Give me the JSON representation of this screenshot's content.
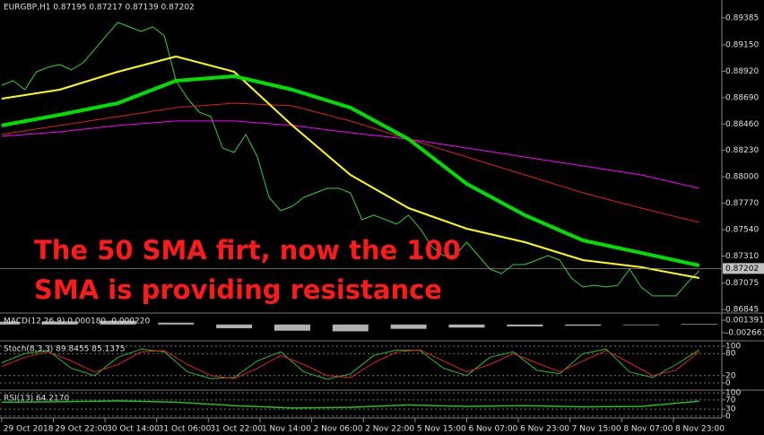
{
  "chart_data": [
    {
      "type": "line",
      "title": "EURGBP,H1 0.87195 0.87217 0.87139 0.87202",
      "annotation": [
        "The 50 SMA firt, now the 100",
        "SMA is providing resistance"
      ],
      "last": 0.87202,
      "grid": false,
      "xlim": [
        -0.5,
        223
      ],
      "xticks": [
        {
          "value": 0,
          "label": "29 Oct 2018"
        },
        {
          "value": 16,
          "label": "29 Oct 22:00"
        },
        {
          "value": 32,
          "label": "30 Oct 14:00"
        },
        {
          "value": 48,
          "label": "31 Oct 06:00"
        },
        {
          "value": 64,
          "label": "31 Oct 22:00"
        },
        {
          "value": 80,
          "label": "1 Nov 14:00"
        },
        {
          "value": 96,
          "label": "2 Nov 06:00"
        },
        {
          "value": 112,
          "label": "2 Nov 22:00"
        },
        {
          "value": 128,
          "label": "5 Nov 15:00"
        },
        {
          "value": 144,
          "label": "6 Nov 07:00"
        },
        {
          "value": 160,
          "label": "6 Nov 23:00"
        },
        {
          "value": 176,
          "label": "7 Nov 15:00"
        },
        {
          "value": 192,
          "label": "8 Nov 07:00"
        },
        {
          "value": 208,
          "label": "8 Nov 23:00"
        }
      ],
      "ylim": [
        0.86822,
        0.8954
      ],
      "yticks": [
        0.89385,
        {
          "value": 0.8915,
          "label": "0.89150"
        },
        {
          "value": 0.8892,
          "label": "0.88920"
        },
        {
          "value": 0.8869,
          "label": "0.88690"
        },
        {
          "value": 0.8846,
          "label": "0.88460"
        },
        {
          "value": 0.8823,
          "label": "0.88230"
        },
        {
          "value": 0.88,
          "label": "0.88000"
        },
        {
          "value": 0.8777,
          "label": "0.87770"
        },
        {
          "value": 0.8754,
          "label": "0.87540"
        },
        {
          "value": 0.8731,
          "label": "0.87310"
        },
        0.87075,
        0.86845
      ],
      "series": [
        {
          "color": "#35d035",
          "width": 1,
          "x": [
            0,
            3.6,
            7.2,
            10.8,
            14.4,
            18,
            21.6,
            25.2,
            28.8,
            32.4,
            36,
            39.6,
            43.2,
            46.8,
            50.4,
            54,
            57.6,
            61.2,
            64.8,
            68.4,
            72,
            75.6,
            79.2,
            82.8,
            86.4,
            90,
            93.6,
            97.2,
            100.8,
            104.4,
            108,
            111.6,
            115.2,
            118.8,
            122.4,
            126,
            129.6,
            133.2,
            136.8,
            140.4,
            144,
            147.6,
            151.2,
            154.8,
            158.4,
            162,
            165.6,
            169.2,
            172.8,
            176.4,
            180,
            183.6,
            187.2,
            190.8,
            194.4,
            198,
            201.6,
            205.2,
            208.8,
            212.4,
            216
          ],
          "values": [
            0.88798,
            0.88837,
            0.88759,
            0.88915,
            0.88954,
            0.88978,
            0.88931,
            0.88993,
            0.8911,
            0.89228,
            0.89345,
            0.89306,
            0.89267,
            0.89306,
            0.89228,
            0.88837,
            0.88681,
            0.88564,
            0.88525,
            0.88251,
            0.88212,
            0.88369,
            0.88173,
            0.87822,
            0.87705,
            0.87744,
            0.87822,
            0.87861,
            0.879,
            0.879,
            0.87861,
            0.87627,
            0.87666,
            0.87627,
            0.87588,
            0.87666,
            0.87548,
            0.87392,
            0.87314,
            0.87314,
            0.87431,
            0.87314,
            0.87197,
            0.87158,
            0.87236,
            0.87236,
            0.87275,
            0.87314,
            0.87275,
            0.87119,
            0.87041,
            0.87056,
            0.87041,
            0.87056,
            0.87197,
            0.87041,
            0.86963,
            0.86963,
            0.86963,
            0.8708,
            0.87181
          ]
        },
        {
          "color": "#ff00ff",
          "width": 1,
          "x": [
            0,
            18,
            36,
            54,
            72,
            90,
            108,
            126,
            144,
            162,
            180,
            198,
            216
          ],
          "values": [
            0.88353,
            0.88392,
            0.88447,
            0.88486,
            0.88486,
            0.88447,
            0.88384,
            0.88329,
            0.88251,
            0.88173,
            0.88095,
            0.88017,
            0.879
          ]
        },
        {
          "color": "#e02020",
          "width": 1,
          "x": [
            0,
            18,
            36,
            54,
            72,
            90,
            108,
            126,
            144,
            162,
            180,
            198,
            216
          ],
          "values": [
            0.88369,
            0.88447,
            0.88525,
            0.88603,
            0.88642,
            0.88618,
            0.88486,
            0.88329,
            0.88173,
            0.88017,
            0.87861,
            0.87728,
            0.87603
          ]
        },
        {
          "color": "#ffff00",
          "width": 2,
          "x": [
            0,
            18,
            36,
            54,
            72,
            90,
            108,
            126,
            144,
            162,
            180,
            198,
            216
          ],
          "values": [
            0.88681,
            0.88759,
            0.88915,
            0.89048,
            0.88915,
            0.88447,
            0.88017,
            0.87728,
            0.87548,
            0.87431,
            0.87275,
            0.87213,
            0.87119
          ]
        },
        {
          "color": "#00e000",
          "width": 4,
          "x": [
            0,
            18,
            36,
            54,
            72,
            90,
            108,
            126,
            144,
            162,
            180,
            198,
            216
          ],
          "values": [
            0.88447,
            0.8854,
            0.88642,
            0.88837,
            0.88876,
            0.88759,
            0.88603,
            0.88329,
            0.87939,
            0.87666,
            0.87447,
            0.87338,
            0.87228
          ]
        }
      ]
    },
    {
      "type": "bar",
      "title": "MACD(12,26,9) 0.000180 -0.000220",
      "grid": false,
      "ylim": [
        -0.004687,
        0.003417
      ],
      "yticks": [
        0.001391,
        -0.002661
      ],
      "series": [
        {
          "color": "#b0b0b0",
          "x": [
            0,
            18,
            36,
            54,
            72,
            90,
            108,
            126,
            144,
            162,
            180,
            198,
            216
          ],
          "values": [
            0.0009,
            0.001,
            0.0012,
            0.0006,
            -0.0012,
            -0.002,
            -0.0022,
            -0.0014,
            -0.001,
            -0.0006,
            -0.0004,
            -0.0002,
            0.0002
          ]
        }
      ]
    },
    {
      "type": "line",
      "title": "Stoch(8,3,3) 89.8455 85.1375",
      "grid": true,
      "ylim": [
        -14.6,
        112.2
      ],
      "yticks": [
        100,
        80,
        20,
        0
      ],
      "series": [
        {
          "color": "#20c020",
          "width": 1,
          "x": [
            0,
            7.2,
            14.4,
            21.6,
            28.8,
            36,
            43.2,
            50.4,
            57.6,
            64.8,
            72,
            79.2,
            86.4,
            93.6,
            100.8,
            108,
            115.2,
            122.4,
            129.6,
            136.8,
            144,
            151.2,
            158.4,
            165.6,
            172.8,
            180,
            187.2,
            194.4,
            201.6,
            208.8,
            216
          ],
          "values": [
            55,
            80,
            88,
            40,
            20,
            70,
            92,
            85,
            30,
            12,
            15,
            60,
            85,
            30,
            10,
            25,
            75,
            90,
            88,
            40,
            20,
            70,
            85,
            35,
            25,
            80,
            92,
            30,
            15,
            50,
            89.8455
          ]
        },
        {
          "color": "#e02020",
          "width": 1,
          "x": [
            0,
            7.2,
            14.4,
            21.6,
            28.8,
            36,
            43.2,
            50.4,
            57.6,
            64.8,
            72,
            79.2,
            86.4,
            93.6,
            100.8,
            108,
            115.2,
            122.4,
            129.6,
            136.8,
            144,
            151.2,
            158.4,
            165.6,
            172.8,
            180,
            187.2,
            194.4,
            201.6,
            208.8,
            216
          ],
          "values": [
            45,
            70,
            85,
            60,
            30,
            50,
            85,
            88,
            50,
            20,
            12,
            40,
            75,
            50,
            20,
            15,
            55,
            85,
            90,
            60,
            30,
            50,
            80,
            55,
            30,
            60,
            88,
            55,
            20,
            35,
            85.1375
          ]
        }
      ]
    },
    {
      "type": "line",
      "title": "RSI(13) 64.2170",
      "grid": true,
      "ylim": [
        -8,
        108
      ],
      "yticks": [
        100,
        70,
        30,
        0
      ],
      "series": [
        {
          "color": "#20c020",
          "width": 1.5,
          "x": [
            0,
            18,
            36,
            54,
            72,
            90,
            108,
            126,
            144,
            162,
            180,
            198,
            216
          ],
          "values": [
            60,
            62,
            66,
            60,
            45,
            35,
            38,
            48,
            42,
            45,
            40,
            42,
            64.217
          ]
        }
      ]
    }
  ]
}
